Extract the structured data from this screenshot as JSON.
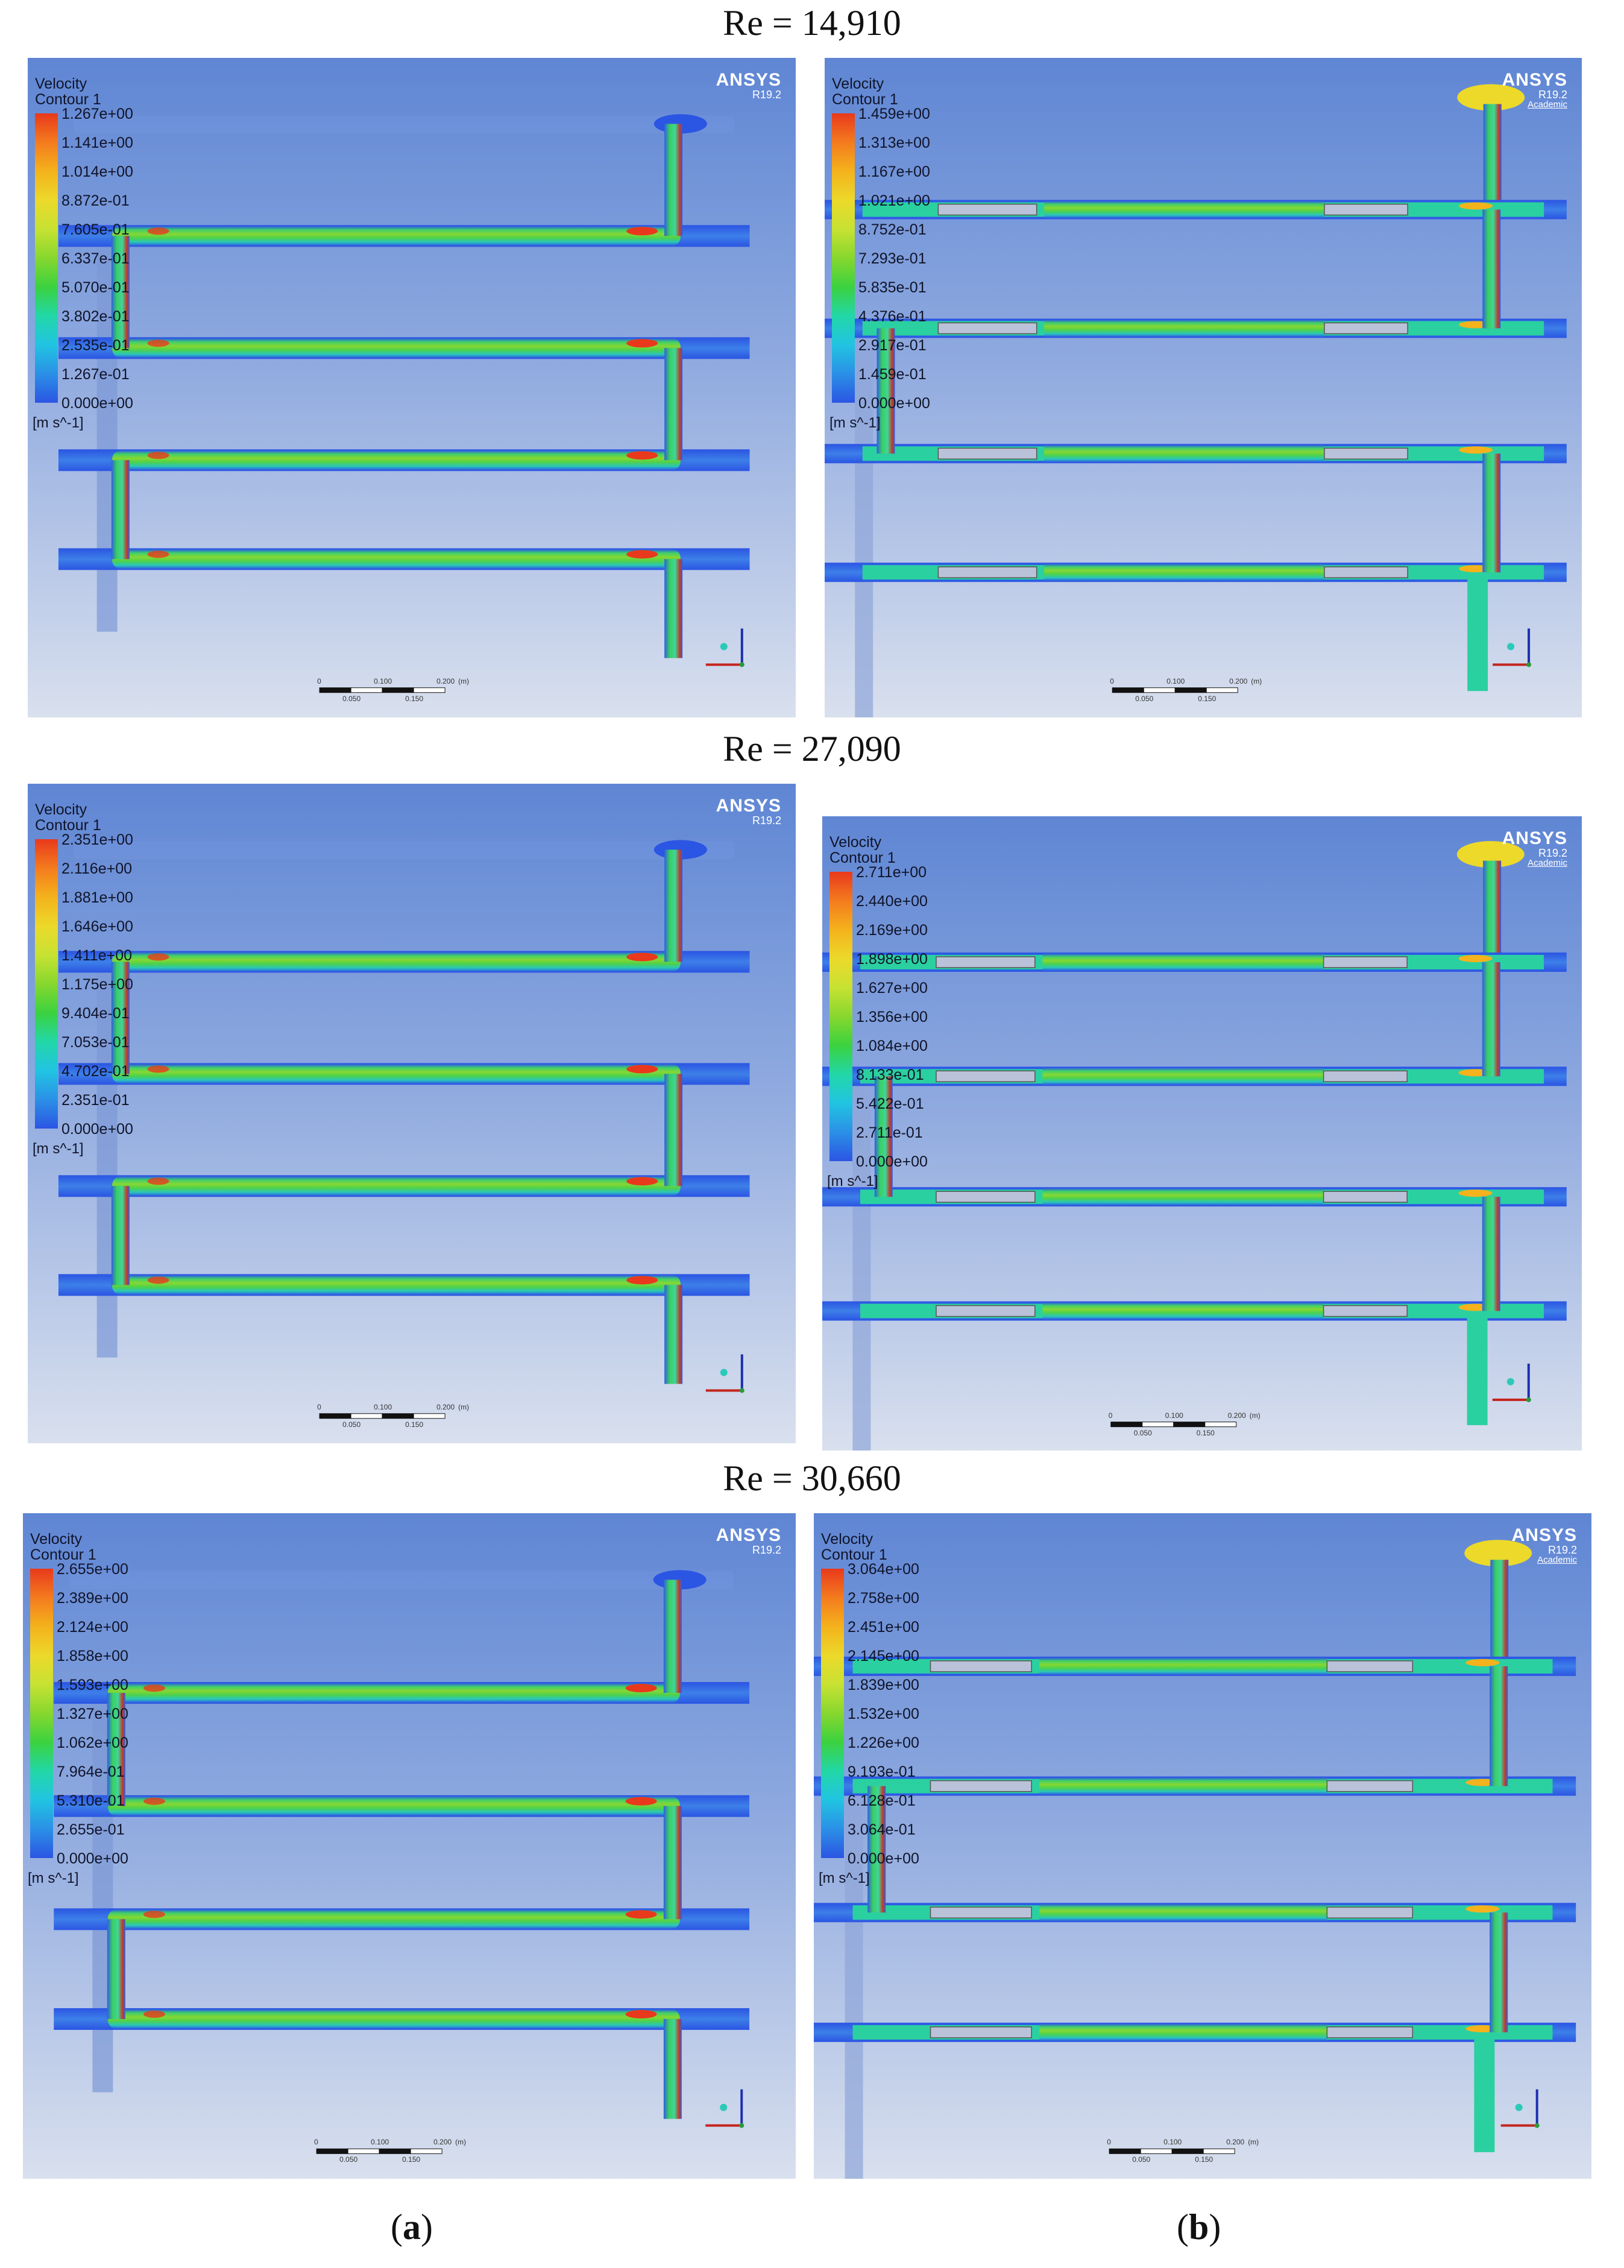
{
  "re_titles": [
    "Re = 14,910",
    "Re = 27,090",
    "Re = 30,660"
  ],
  "legend": {
    "title_line1": "Velocity",
    "title_line2": "Contour 1",
    "unit": "[m s^-1]",
    "colors": [
      "#e8391c",
      "#f47b1e",
      "#f4b21c",
      "#ecd92a",
      "#c7e233",
      "#87d72e",
      "#3bd23f",
      "#22d7a7",
      "#21c4e2",
      "#2b90e6",
      "#2b55e3"
    ]
  },
  "brand": {
    "name": "ANSYS",
    "version": "R19.2",
    "academic": "Academic"
  },
  "scalebar": {
    "top_labels": [
      "0",
      "0.100",
      "0.200",
      "(m)"
    ],
    "bottom_labels": [
      "0.050",
      "0.150"
    ]
  },
  "panels": [
    {
      "id": "a1",
      "values": [
        "1.267e+00",
        "1.141e+00",
        "1.014e+00",
        "8.872e-01",
        "7.605e-01",
        "6.337e-01",
        "5.070e-01",
        "3.802e-01",
        "2.535e-01",
        "1.267e-01",
        "0.000e+00"
      ]
    },
    {
      "id": "b1",
      "values": [
        "1.459e+00",
        "1.313e+00",
        "1.167e+00",
        "1.021e+00",
        "8.752e-01",
        "7.293e-01",
        "5.835e-01",
        "4.376e-01",
        "2.917e-01",
        "1.459e-01",
        "0.000e+00"
      ]
    },
    {
      "id": "a2",
      "values": [
        "2.351e+00",
        "2.116e+00",
        "1.881e+00",
        "1.646e+00",
        "1.411e+00",
        "1.175e+00",
        "9.404e-01",
        "7.053e-01",
        "4.702e-01",
        "2.351e-01",
        "0.000e+00"
      ]
    },
    {
      "id": "b2",
      "values": [
        "2.711e+00",
        "2.440e+00",
        "2.169e+00",
        "1.898e+00",
        "1.627e+00",
        "1.356e+00",
        "1.084e+00",
        "8.133e-01",
        "5.422e-01",
        "2.711e-01",
        "0.000e+00"
      ]
    },
    {
      "id": "a3",
      "values": [
        "2.655e+00",
        "2.389e+00",
        "2.124e+00",
        "1.858e+00",
        "1.593e+00",
        "1.327e+00",
        "1.062e+00",
        "7.964e-01",
        "5.310e-01",
        "2.655e-01",
        "0.000e+00"
      ]
    },
    {
      "id": "b3",
      "values": [
        "3.064e+00",
        "2.758e+00",
        "2.451e+00",
        "2.145e+00",
        "1.839e+00",
        "1.532e+00",
        "1.226e+00",
        "9.193e-01",
        "6.128e-01",
        "3.064e-01",
        "0.000e+00"
      ]
    }
  ],
  "captions": {
    "a": "a",
    "b": "b"
  }
}
